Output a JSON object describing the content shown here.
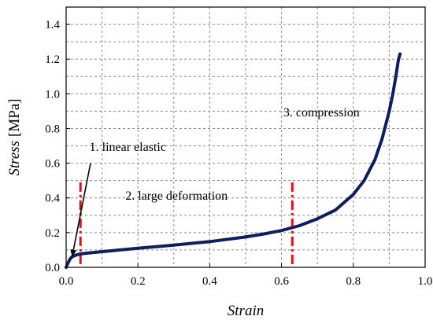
{
  "chart_data": {
    "type": "line",
    "xlabel": "Strain",
    "ylabel": "Stress",
    "ylabel_unit": "[MPa]",
    "xlim": [
      0.0,
      1.0
    ],
    "ylim": [
      0.0,
      1.5
    ],
    "x_ticks": [
      "0.0",
      "0.2",
      "0.4",
      "0.6",
      "0.8",
      "1.0"
    ],
    "y_ticks": [
      "0.0",
      "0.2",
      "0.4",
      "0.6",
      "0.8",
      "1.0",
      "1.2",
      "1.4"
    ],
    "grid": true,
    "series": [
      {
        "color": "#0d1f5c",
        "x": [
          0.0,
          0.005,
          0.01,
          0.015,
          0.02,
          0.03,
          0.04,
          0.06,
          0.1,
          0.15,
          0.2,
          0.3,
          0.4,
          0.5,
          0.55,
          0.6,
          0.65,
          0.7,
          0.75,
          0.8,
          0.83,
          0.86,
          0.88,
          0.9,
          0.91,
          0.92,
          0.925,
          0.93
        ],
        "y": [
          0.0,
          0.025,
          0.045,
          0.058,
          0.065,
          0.072,
          0.077,
          0.082,
          0.09,
          0.1,
          0.11,
          0.128,
          0.148,
          0.175,
          0.192,
          0.212,
          0.24,
          0.28,
          0.33,
          0.42,
          0.5,
          0.62,
          0.74,
          0.9,
          1.0,
          1.12,
          1.19,
          1.23
        ]
      }
    ],
    "dividers": [
      {
        "x": 0.04,
        "y_top": 0.49,
        "color": "#e0101a"
      },
      {
        "x": 0.63,
        "y_top": 0.49,
        "color": "#e0101a"
      }
    ],
    "annotations": [
      {
        "text": "1. linear elastic",
        "x": 0.065,
        "y": 0.67
      },
      {
        "text": "2. large deformation",
        "x": 0.165,
        "y": 0.39
      },
      {
        "text": "3. compression",
        "x": 0.605,
        "y": 0.87
      }
    ],
    "arrow": {
      "from": [
        0.068,
        0.6
      ],
      "to": [
        0.017,
        0.065
      ]
    }
  }
}
